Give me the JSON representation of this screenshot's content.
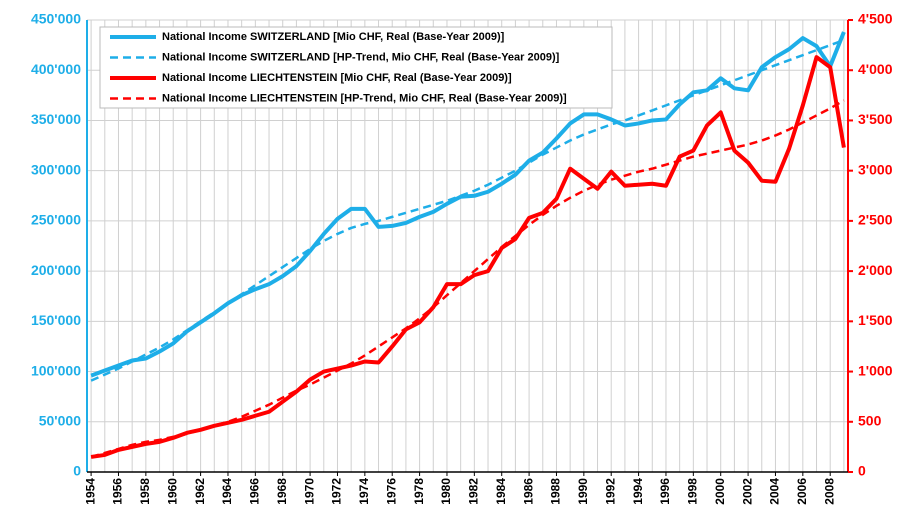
{
  "chart_data": {
    "type": "line",
    "x": [
      1954,
      1955,
      1956,
      1957,
      1958,
      1959,
      1960,
      1961,
      1962,
      1963,
      1964,
      1965,
      1966,
      1967,
      1968,
      1969,
      1970,
      1971,
      1972,
      1973,
      1974,
      1975,
      1976,
      1977,
      1978,
      1979,
      1980,
      1981,
      1982,
      1983,
      1984,
      1985,
      1986,
      1987,
      1988,
      1989,
      1990,
      1991,
      1992,
      1993,
      1994,
      1995,
      1996,
      1997,
      1998,
      1999,
      2000,
      2001,
      2002,
      2003,
      2004,
      2005,
      2006,
      2007,
      2008,
      2009
    ],
    "xlim": [
      1953.7,
      2009.3
    ],
    "xticks": [
      1954,
      1956,
      1958,
      1960,
      1962,
      1964,
      1966,
      1968,
      1970,
      1972,
      1974,
      1976,
      1978,
      1980,
      1982,
      1984,
      1986,
      1988,
      1990,
      1992,
      1994,
      1996,
      1998,
      2000,
      2002,
      2004,
      2006,
      2008
    ],
    "ylim": [
      0,
      450000
    ],
    "yticks": [
      0,
      {
        "value": 50000,
        "label": "50'000"
      },
      {
        "value": 100000,
        "label": "100'000"
      },
      {
        "value": 150000,
        "label": "150'000"
      },
      {
        "value": 200000,
        "label": "200'000"
      },
      {
        "value": 250000,
        "label": "250'000"
      },
      {
        "value": 300000,
        "label": "300'000"
      },
      {
        "value": 350000,
        "label": "350'000"
      },
      {
        "value": 400000,
        "label": "400'000"
      },
      {
        "value": 450000,
        "label": "450'000"
      }
    ],
    "y_color": "#1eaee8",
    "y2lim": [
      0,
      4500
    ],
    "y2ticks": [
      0,
      500,
      {
        "value": 1000,
        "label": "1'000"
      },
      {
        "value": 1500,
        "label": "1'500"
      },
      {
        "value": 2000,
        "label": "2'000"
      },
      {
        "value": 2500,
        "label": "2'500"
      },
      {
        "value": 3000,
        "label": "3'000"
      },
      {
        "value": 3500,
        "label": "3'500"
      },
      {
        "value": 4000,
        "label": "4'000"
      },
      {
        "value": 4500,
        "label": "4'500"
      }
    ],
    "y2_color": "#ff0000",
    "grid": true,
    "legend": "top-left",
    "series": [
      {
        "name": "National Income SWITZERLAND [Mio CHF, Real (Base-Year 2009)]",
        "color": "#1eaee8",
        "linestyle": "solid",
        "values": [
          96000,
          101000,
          106000,
          111000,
          113000,
          120000,
          128000,
          140000,
          149000,
          158000,
          168000,
          176000,
          182000,
          187000,
          195000,
          205000,
          220000,
          237000,
          252000,
          262000,
          262000,
          244000,
          245000,
          248000,
          254000,
          259000,
          267000,
          274000,
          275000,
          279000,
          287000,
          296000,
          310000,
          318000,
          332000,
          347000,
          356000,
          356000,
          351000,
          345000,
          347000,
          350000,
          351000,
          366000,
          378000,
          380000,
          392000,
          382000,
          380000,
          403000,
          413000,
          421000,
          432000,
          424000,
          404000,
          438000
        ]
      },
      {
        "name": "National Income SWITZERLAND [HP-Trend, Mio CHF, Real (Base-Year 2009)]",
        "color": "#1eaee8",
        "linestyle": "dashed",
        "values": [
          91000,
          97000,
          103000,
          110000,
          117000,
          124000,
          132000,
          141000,
          150000,
          159000,
          168000,
          177000,
          186000,
          195000,
          204000,
          213000,
          222000,
          230000,
          237000,
          243000,
          247000,
          250000,
          254000,
          258000,
          262000,
          266000,
          270000,
          275000,
          280000,
          286000,
          293000,
          300000,
          308000,
          316000,
          323000,
          330000,
          336000,
          341000,
          346000,
          350000,
          355000,
          360000,
          365000,
          370000,
          375000,
          380000,
          385000,
          390000,
          395000,
          400000,
          405000,
          410000,
          415000,
          420000,
          425000,
          430000
        ]
      },
      {
        "name": "National Income LIECHTENSTEIN [Mio CHF, Real (Base-Year 2009)]",
        "color": "#ff0000",
        "linestyle": "solid",
        "axis": "y2",
        "values": [
          150,
          170,
          220,
          250,
          280,
          300,
          340,
          390,
          420,
          460,
          490,
          520,
          560,
          600,
          700,
          800,
          920,
          1000,
          1030,
          1060,
          1100,
          1090,
          1250,
          1420,
          1490,
          1640,
          1870,
          1870,
          1960,
          2000,
          2230,
          2320,
          2530,
          2580,
          2720,
          3020,
          2920,
          2820,
          2990,
          2850,
          2860,
          2870,
          2850,
          3140,
          3200,
          3450,
          3580,
          3200,
          3080,
          2900,
          2890,
          3220,
          3650,
          4130,
          4030,
          3230
        ]
      },
      {
        "name": "National Income LIECHTENSTEIN [HP-Trend, Mio CHF, Real (Base-Year 2009)]",
        "color": "#ff0000",
        "linestyle": "dashed",
        "axis": "y2",
        "values": [
          150,
          190,
          230,
          270,
          300,
          320,
          350,
          380,
          420,
          460,
          500,
          550,
          610,
          670,
          740,
          810,
          870,
          940,
          1010,
          1080,
          1160,
          1250,
          1340,
          1430,
          1530,
          1640,
          1760,
          1880,
          2000,
          2120,
          2240,
          2350,
          2460,
          2560,
          2650,
          2730,
          2800,
          2860,
          2910,
          2950,
          2990,
          3020,
          3060,
          3100,
          3140,
          3170,
          3200,
          3230,
          3260,
          3300,
          3350,
          3410,
          3480,
          3550,
          3620,
          3700
        ]
      }
    ]
  }
}
